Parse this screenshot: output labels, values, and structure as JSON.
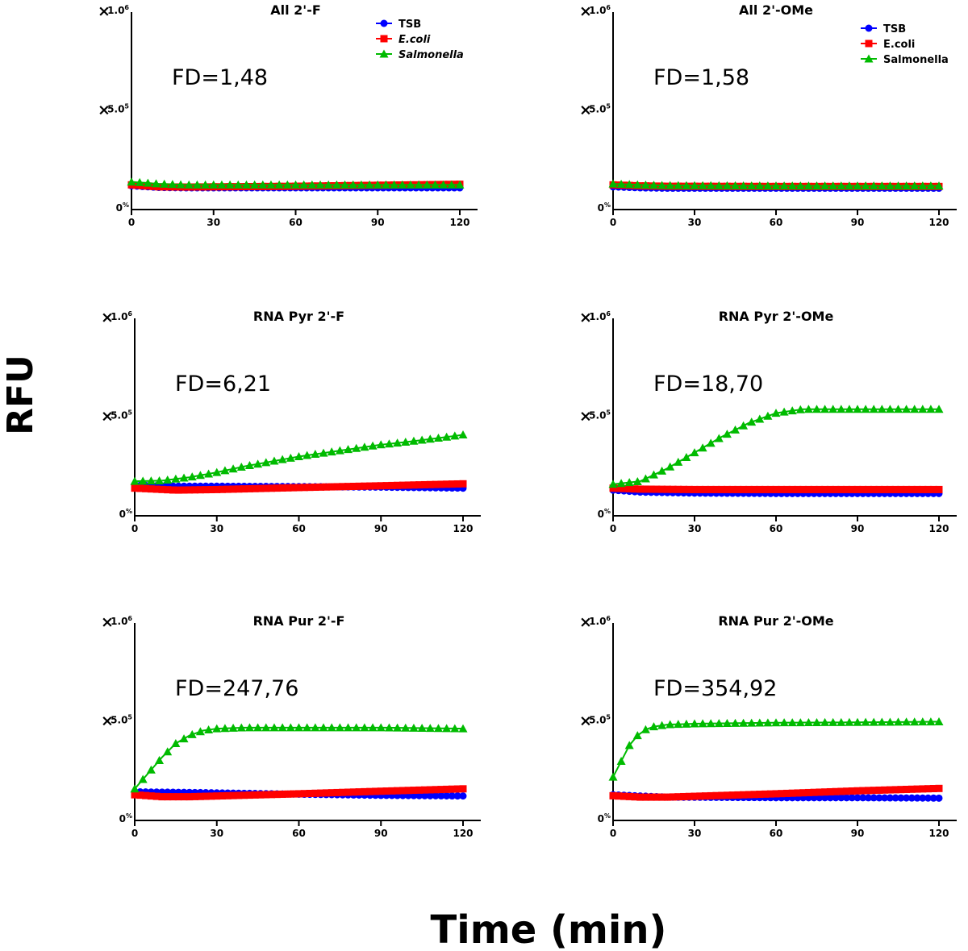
{
  "figure": {
    "ylabel": "RFU",
    "xlabel": "Time (min)"
  },
  "chart_data": [
    {
      "type": "line",
      "title": "All 2'-F",
      "annotation": "FD=1,48",
      "xlim": [
        0,
        120
      ],
      "ylim": [
        0,
        1000000
      ],
      "xticks": [
        "0",
        "30",
        "60",
        "90",
        "120"
      ],
      "yticks": [
        {
          "value": 0,
          "mantissa": "0",
          "exp": "%"
        },
        {
          "value": 500000,
          "mantissa": "5.0",
          "exp": "5"
        },
        {
          "value": 1000000,
          "mantissa": "1.0",
          "exp": "6"
        }
      ],
      "legend": {
        "position": "top-right",
        "items": [
          {
            "name": "TSB",
            "italic": false
          },
          {
            "name": "E.coli",
            "italic": true
          },
          {
            "name": "Salmonella",
            "italic": true
          }
        ]
      },
      "series": [
        {
          "name": "TSB",
          "color": "#0000ff",
          "marker": "circle",
          "x": [
            0,
            10,
            20,
            60,
            120
          ],
          "y": [
            120000,
            112000,
            110000,
            110000,
            110000
          ]
        },
        {
          "name": "E.coli",
          "color": "#ff0000",
          "marker": "square",
          "x": [
            0,
            10,
            20,
            60,
            120
          ],
          "y": [
            125000,
            115000,
            114000,
            118000,
            128000
          ]
        },
        {
          "name": "Salmonella",
          "color": "#00bb00",
          "marker": "triangle",
          "x": [
            0,
            10,
            20,
            60,
            120
          ],
          "y": [
            140000,
            130000,
            125000,
            125000,
            125000
          ]
        }
      ]
    },
    {
      "type": "line",
      "title": "All 2'-OMe",
      "annotation": "FD=1,58",
      "xlim": [
        0,
        120
      ],
      "ylim": [
        0,
        1000000
      ],
      "xticks": [
        "0",
        "30",
        "60",
        "90",
        "120"
      ],
      "yticks": [
        {
          "value": 0,
          "mantissa": "0",
          "exp": "%"
        },
        {
          "value": 500000,
          "mantissa": "5.0",
          "exp": "5"
        },
        {
          "value": 1000000,
          "mantissa": "1.0",
          "exp": "6"
        }
      ],
      "legend": {
        "position": "top-right",
        "items": [
          {
            "name": "TSB",
            "italic": false
          },
          {
            "name": "E.coli",
            "italic": false
          },
          {
            "name": "Salmonella",
            "italic": false
          }
        ]
      },
      "series": [
        {
          "name": "TSB",
          "color": "#0000ff",
          "marker": "circle",
          "x": [
            0,
            10,
            20,
            60,
            120
          ],
          "y": [
            115000,
            110000,
            108000,
            108000,
            108000
          ]
        },
        {
          "name": "E.coli",
          "color": "#ff0000",
          "marker": "square",
          "x": [
            0,
            10,
            20,
            60,
            120
          ],
          "y": [
            125000,
            120000,
            118000,
            117000,
            117000
          ]
        },
        {
          "name": "Salmonella",
          "color": "#00bb00",
          "marker": "triangle",
          "x": [
            0,
            10,
            20,
            60,
            120
          ],
          "y": [
            130000,
            125000,
            122000,
            120000,
            120000
          ]
        }
      ]
    },
    {
      "type": "line",
      "title": "RNA Pyr 2'-F",
      "annotation": "FD=6,21",
      "xlim": [
        0,
        120
      ],
      "ylim": [
        0,
        1000000
      ],
      "xticks": [
        "0",
        "30",
        "60",
        "90",
        "120"
      ],
      "yticks": [
        {
          "value": 0,
          "mantissa": "0",
          "exp": "%"
        },
        {
          "value": 500000,
          "mantissa": "5.0",
          "exp": "5"
        },
        {
          "value": 1000000,
          "mantissa": "1.0",
          "exp": "6"
        }
      ],
      "series": [
        {
          "name": "TSB",
          "color": "#0000ff",
          "marker": "circle",
          "x": [
            0,
            15,
            30,
            60,
            90,
            120
          ],
          "y": [
            155000,
            150000,
            150000,
            148000,
            145000,
            140000
          ]
        },
        {
          "name": "E.coli",
          "color": "#ff0000",
          "marker": "square",
          "x": [
            0,
            15,
            30,
            60,
            90,
            120
          ],
          "y": [
            140000,
            130000,
            133000,
            143000,
            152000,
            162000
          ]
        },
        {
          "name": "Salmonella",
          "color": "#00bb00",
          "marker": "triangle",
          "x": [
            0,
            10,
            20,
            30,
            40,
            50,
            60,
            70,
            80,
            90,
            100,
            110,
            120
          ],
          "y": [
            175000,
            178000,
            195000,
            220000,
            250000,
            275000,
            300000,
            320000,
            340000,
            360000,
            375000,
            392000,
            410000
          ]
        }
      ]
    },
    {
      "type": "line",
      "title": "RNA Pyr 2'-OMe",
      "annotation": "FD=18,70",
      "xlim": [
        0,
        120
      ],
      "ylim": [
        0,
        1000000
      ],
      "xticks": [
        "0",
        "30",
        "60",
        "90",
        "120"
      ],
      "yticks": [
        {
          "value": 0,
          "mantissa": "0",
          "exp": "%"
        },
        {
          "value": 500000,
          "mantissa": "5.0",
          "exp": "5"
        },
        {
          "value": 1000000,
          "mantissa": "1.0",
          "exp": "6"
        }
      ],
      "series": [
        {
          "name": "TSB",
          "color": "#0000ff",
          "marker": "circle",
          "x": [
            0,
            10,
            30,
            60,
            120
          ],
          "y": [
            130000,
            120000,
            115000,
            113000,
            113000
          ]
        },
        {
          "name": "E.coli",
          "color": "#ff0000",
          "marker": "square",
          "x": [
            0,
            10,
            30,
            60,
            120
          ],
          "y": [
            140000,
            135000,
            133000,
            133000,
            133000
          ]
        },
        {
          "name": "Salmonella",
          "color": "#00bb00",
          "marker": "triangle",
          "x": [
            0,
            10,
            20,
            30,
            40,
            50,
            60,
            70,
            80,
            90,
            100,
            110,
            120
          ],
          "y": [
            160000,
            175000,
            240000,
            320000,
            400000,
            470000,
            520000,
            540000,
            540000,
            540000,
            540000,
            540000,
            540000
          ]
        }
      ]
    },
    {
      "type": "line",
      "title": "RNA Pur 2'-F",
      "annotation": "FD=247,76",
      "xlim": [
        0,
        120
      ],
      "ylim": [
        0,
        1000000
      ],
      "xticks": [
        "0",
        "30",
        "60",
        "90",
        "120"
      ],
      "yticks": [
        {
          "value": 0,
          "mantissa": "0",
          "exp": "%"
        },
        {
          "value": 500000,
          "mantissa": "5.0",
          "exp": "5"
        },
        {
          "value": 1000000,
          "mantissa": "1.0",
          "exp": "6"
        }
      ],
      "series": [
        {
          "name": "TSB",
          "color": "#0000ff",
          "marker": "circle",
          "x": [
            0,
            20,
            60,
            90,
            120
          ],
          "y": [
            145000,
            142000,
            133000,
            127000,
            124000
          ]
        },
        {
          "name": "E.coli",
          "color": "#ff0000",
          "marker": "square",
          "x": [
            0,
            10,
            20,
            60,
            90,
            120
          ],
          "y": [
            130000,
            120000,
            120000,
            135000,
            148000,
            160000
          ]
        },
        {
          "name": "Salmonella",
          "color": "#00bb00",
          "marker": "triangle",
          "x": [
            0,
            5,
            10,
            15,
            20,
            25,
            30,
            40,
            60,
            90,
            120
          ],
          "y": [
            160000,
            240000,
            320000,
            390000,
            430000,
            455000,
            465000,
            470000,
            470000,
            470000,
            465000
          ]
        }
      ]
    },
    {
      "type": "line",
      "title": "RNA Pur 2'-OMe",
      "annotation": "FD=354,92",
      "xlim": [
        0,
        120
      ],
      "ylim": [
        0,
        1000000
      ],
      "xticks": [
        "0",
        "30",
        "60",
        "90",
        "120"
      ],
      "yticks": [
        {
          "value": 0,
          "mantissa": "0",
          "exp": "%"
        },
        {
          "value": 500000,
          "mantissa": "5.0",
          "exp": "5"
        },
        {
          "value": 1000000,
          "mantissa": "1.0",
          "exp": "6"
        }
      ],
      "series": [
        {
          "name": "TSB",
          "color": "#0000ff",
          "marker": "circle",
          "x": [
            0,
            20,
            60,
            90,
            120
          ],
          "y": [
            130000,
            118000,
            115000,
            115000,
            113000
          ]
        },
        {
          "name": "E.coli",
          "color": "#ff0000",
          "marker": "square",
          "x": [
            0,
            10,
            20,
            60,
            90,
            120
          ],
          "y": [
            125000,
            118000,
            118000,
            135000,
            150000,
            162000
          ]
        },
        {
          "name": "Salmonella",
          "color": "#00bb00",
          "marker": "triangle",
          "x": [
            0,
            3,
            6,
            9,
            12,
            15,
            20,
            30,
            60,
            90,
            120
          ],
          "y": [
            220000,
            300000,
            380000,
            430000,
            460000,
            475000,
            485000,
            490000,
            495000,
            497000,
            500000
          ]
        }
      ]
    }
  ]
}
